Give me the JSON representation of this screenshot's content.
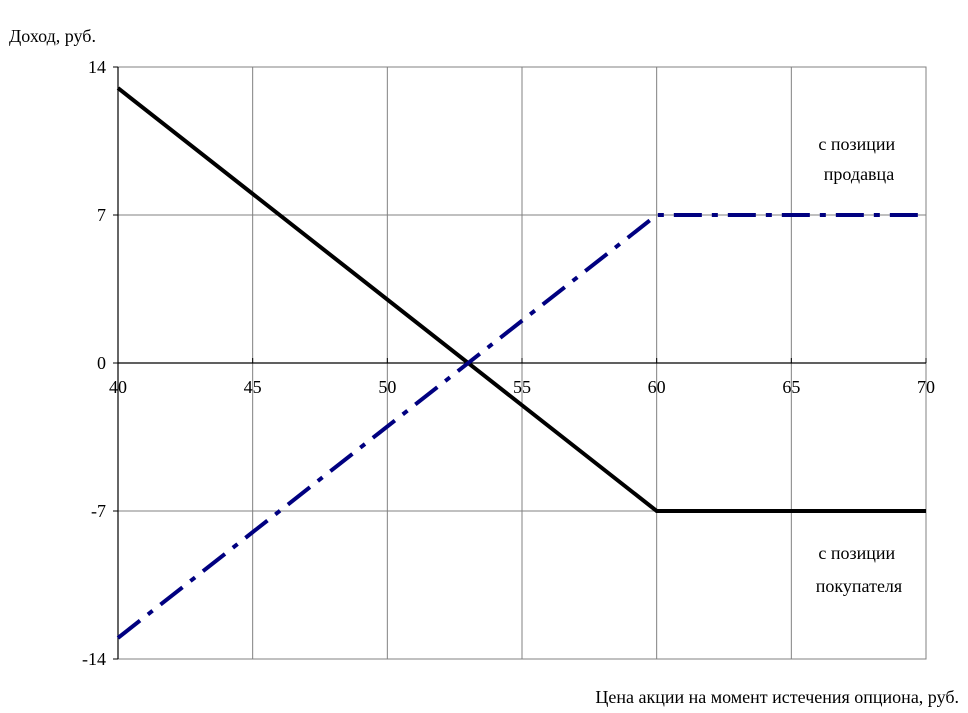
{
  "chart_data": {
    "type": "line",
    "ylabel": "Доход, руб.",
    "xlabel": "Цена акции на момент истечения опциона, руб.",
    "xlim": [
      40,
      70
    ],
    "ylim": [
      -14,
      14
    ],
    "x_ticks": [
      40,
      45,
      50,
      55,
      60,
      65,
      70
    ],
    "y_ticks": [
      14,
      7,
      0,
      -7,
      -14
    ],
    "grid": true,
    "series": [
      {
        "name": "с позиции покупателя",
        "name_lines": [
          "с позиции",
          "покупателя"
        ],
        "style": "solid",
        "color": "#000000",
        "points": [
          [
            40,
            13
          ],
          [
            60,
            -7
          ],
          [
            70,
            -7
          ]
        ]
      },
      {
        "name": "с позиции продавца",
        "name_lines": [
          "с позиции",
          "продавца"
        ],
        "style": "dash-dot",
        "color": "#000080",
        "points": [
          [
            40,
            -13
          ],
          [
            60,
            7
          ],
          [
            70,
            7
          ]
        ]
      }
    ]
  }
}
